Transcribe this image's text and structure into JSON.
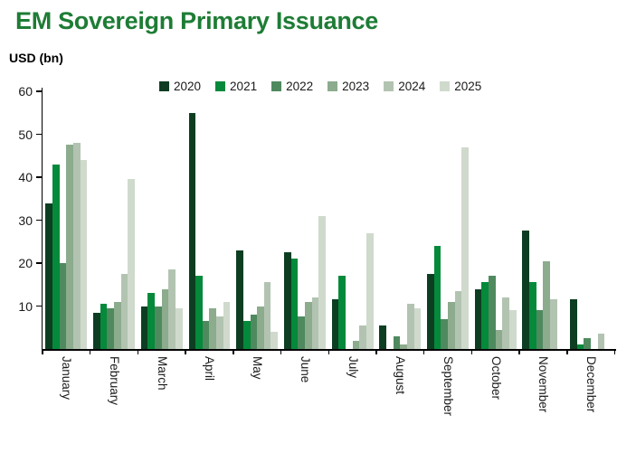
{
  "page": {
    "title": "EM Sovereign Primary Issuance",
    "title_color": "#1e7c35",
    "y_axis_title": "USD (bn)"
  },
  "chart_data": {
    "type": "bar",
    "title": "EM Sovereign Primary Issuance",
    "ylabel": "USD (bn)",
    "xlabel": "",
    "categories": [
      "January",
      "February",
      "March",
      "April",
      "May",
      "June",
      "July",
      "August",
      "September",
      "October",
      "November",
      "December"
    ],
    "series": [
      {
        "name": "2020",
        "color": "#0d3e22",
        "values": [
          34,
          8.5,
          10,
          55,
          23,
          22.5,
          11.5,
          5.5,
          17.5,
          14,
          27.5,
          11.5
        ]
      },
      {
        "name": "2021",
        "color": "#05893a",
        "values": [
          43,
          10.5,
          13,
          17,
          6.5,
          21,
          17,
          0,
          24,
          15.5,
          15.5,
          1
        ]
      },
      {
        "name": "2022",
        "color": "#4f8a5f",
        "values": [
          20,
          9.5,
          10,
          6.5,
          8,
          7.5,
          0,
          3,
          7,
          17,
          9,
          2.5
        ]
      },
      {
        "name": "2023",
        "color": "#8cac8d",
        "values": [
          47.5,
          11,
          14,
          9.5,
          10,
          11,
          2,
          1,
          11,
          4.5,
          20.5,
          0
        ]
      },
      {
        "name": "2024",
        "color": "#b2c4b1",
        "values": [
          48,
          17.5,
          18.5,
          7.5,
          15.5,
          12,
          5.5,
          10.5,
          13.5,
          12,
          11.5,
          3.5
        ]
      },
      {
        "name": "2025",
        "color": "#cfdacd",
        "values": [
          44,
          39.5,
          9.5,
          11,
          4,
          31,
          27,
          9.5,
          47,
          9,
          0,
          0
        ]
      }
    ],
    "ylim": [
      0,
      60
    ],
    "yticks": [
      10,
      20,
      30,
      40,
      50,
      60
    ],
    "grid": false,
    "legend_position": "top"
  }
}
